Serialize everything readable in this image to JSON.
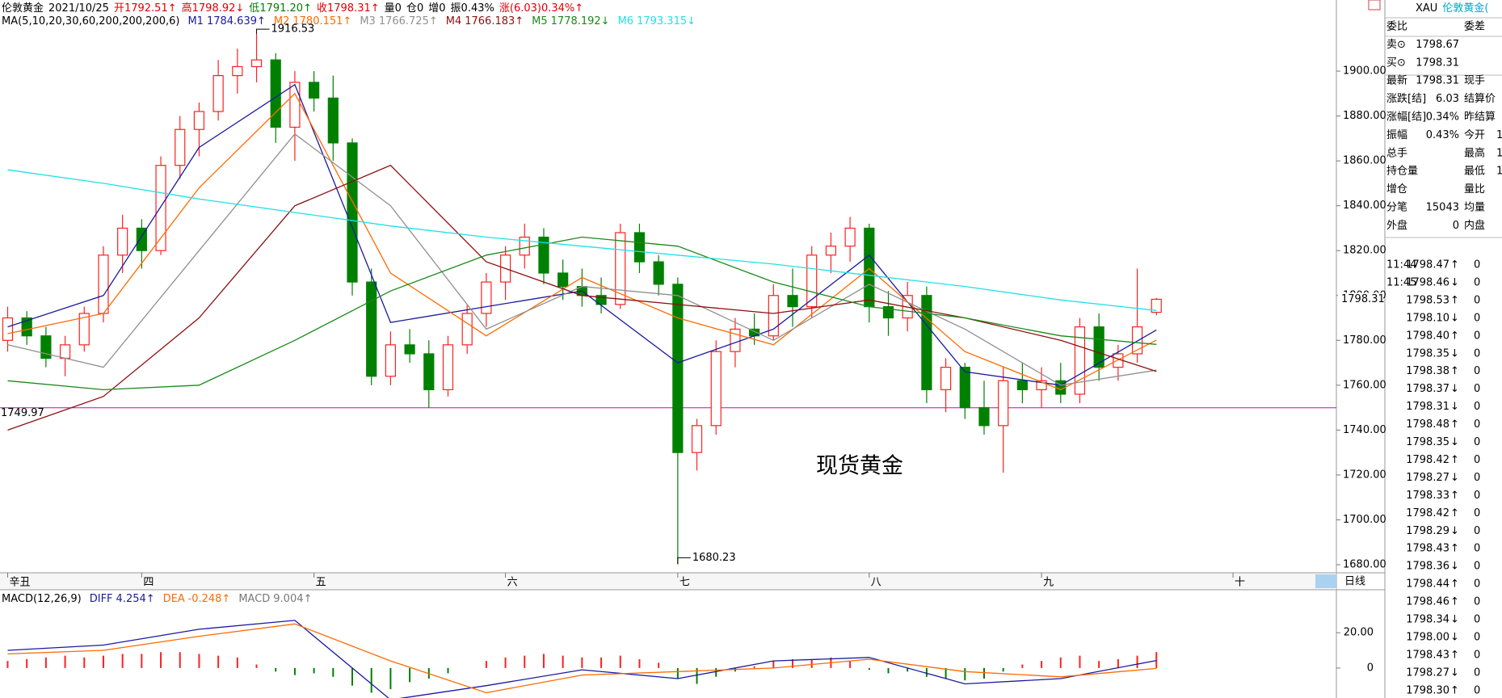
{
  "header": {
    "name": "伦敦黄金",
    "date": "2021/10/25",
    "fields": [
      {
        "label": "开",
        "value": "1792.51↑",
        "color": "#e00000"
      },
      {
        "label": "高",
        "value": "1798.92↓",
        "color": "#e00000"
      },
      {
        "label": "低",
        "value": "1791.20↑",
        "color": "#008000"
      },
      {
        "label": "收",
        "value": "1798.31↑",
        "color": "#e00000"
      },
      {
        "label": "量",
        "value": "0",
        "color": "#000000"
      },
      {
        "label": "仓",
        "value": "0",
        "color": "#000000"
      },
      {
        "label": "增",
        "value": "0",
        "color": "#000000"
      },
      {
        "label": "振",
        "value": "0.43%",
        "color": "#000000"
      },
      {
        "label": "涨",
        "value": "(6.03)0.34%↑",
        "color": "#e00000"
      }
    ]
  },
  "chart_data": [
    {
      "type": "candlestick",
      "title": "MA(5,10,20,30,60,200,200,200,6)",
      "up_color": "#ff2020",
      "down_color": "#008000",
      "open": [
        1780,
        1790,
        1782,
        1772,
        1778,
        1792,
        1818,
        1830,
        1820,
        1858,
        1874,
        1882,
        1898,
        1902,
        1905,
        1875,
        1895,
        1888,
        1868,
        1806,
        1764,
        1778,
        1774,
        1758,
        1778,
        1792,
        1806,
        1818,
        1826,
        1810,
        1804,
        1800,
        1796,
        1828,
        1815,
        1805,
        1730,
        1742,
        1775,
        1785,
        1782,
        1800,
        1795,
        1818,
        1822,
        1830,
        1795,
        1790,
        1800,
        1758,
        1768,
        1750,
        1742,
        1762,
        1758,
        1762,
        1756,
        1786,
        1768,
        1774,
        1792.51
      ],
      "high": [
        1795,
        1793,
        1786,
        1782,
        1795,
        1822,
        1836,
        1834,
        1862,
        1880,
        1886,
        1905,
        1910,
        1916.53,
        1908,
        1900,
        1900,
        1898,
        1870,
        1812,
        1784,
        1785,
        1780,
        1782,
        1796,
        1810,
        1822,
        1832,
        1830,
        1816,
        1812,
        1808,
        1832,
        1832,
        1818,
        1808,
        1745,
        1780,
        1790,
        1792,
        1805,
        1812,
        1822,
        1828,
        1835,
        1832,
        1802,
        1806,
        1804,
        1772,
        1770,
        1762,
        1768,
        1770,
        1768,
        1770,
        1790,
        1792,
        1778,
        1812,
        1798.92
      ],
      "low": [
        1775,
        1778,
        1768,
        1764,
        1775,
        1788,
        1810,
        1812,
        1818,
        1852,
        1862,
        1878,
        1890,
        1895,
        1868,
        1860,
        1882,
        1860,
        1800,
        1760,
        1760,
        1770,
        1750,
        1755,
        1774,
        1786,
        1798,
        1812,
        1805,
        1798,
        1795,
        1792,
        1794,
        1810,
        1800,
        1680.23,
        1722,
        1738,
        1768,
        1778,
        1780,
        1786,
        1790,
        1810,
        1815,
        1788,
        1782,
        1784,
        1752,
        1748,
        1745,
        1738,
        1721,
        1752,
        1750,
        1752,
        1752,
        1762,
        1762,
        1770,
        1791.2
      ],
      "close": [
        1790,
        1782,
        1772,
        1778,
        1792,
        1818,
        1830,
        1820,
        1858,
        1874,
        1882,
        1898,
        1902,
        1905,
        1875,
        1895,
        1888,
        1868,
        1806,
        1764,
        1778,
        1774,
        1758,
        1778,
        1792,
        1806,
        1818,
        1826,
        1810,
        1804,
        1800,
        1796,
        1828,
        1815,
        1805,
        1730,
        1742,
        1775,
        1785,
        1782,
        1800,
        1795,
        1818,
        1822,
        1830,
        1795,
        1790,
        1800,
        1758,
        1768,
        1750,
        1742,
        1762,
        1758,
        1762,
        1756,
        1786,
        1768,
        1774,
        1786,
        1798.31
      ],
      "series_x": [
        0,
        5,
        10,
        15,
        20,
        25,
        30,
        35,
        40,
        45,
        50,
        55,
        60
      ],
      "series": [
        {
          "name": "M1",
          "legend_value": "1784.639↑",
          "color": "#1a1aa0",
          "values": [
            1786,
            1800,
            1866,
            1894,
            1788,
            1795,
            1802,
            1770,
            1785,
            1818,
            1766,
            1760,
            1784.639
          ]
        },
        {
          "name": "M2",
          "legend_value": "1780.151↑",
          "color": "#ff6a00",
          "values": [
            1783,
            1792,
            1848,
            1890,
            1810,
            1782,
            1808,
            1790,
            1778,
            1812,
            1775,
            1758,
            1780.151
          ]
        },
        {
          "name": "M3",
          "legend_value": "1766.725↑",
          "color": "#909090",
          "values": [
            1778,
            1768,
            1820,
            1872,
            1840,
            1785,
            1804,
            1800,
            1780,
            1805,
            1785,
            1760,
            1766.725
          ]
        },
        {
          "name": "M4",
          "legend_value": "1766.183↑",
          "color": "#8b1010",
          "values": [
            1740,
            1755,
            1790,
            1840,
            1858,
            1815,
            1800,
            1796,
            1792,
            1798,
            1790,
            1780,
            1766.183
          ]
        },
        {
          "name": "M5",
          "legend_value": "1778.192↓",
          "color": "#1a8a1a",
          "values": [
            1762,
            1758,
            1760,
            1780,
            1802,
            1818,
            1826,
            1822,
            1806,
            1795,
            1790,
            1782,
            1778.192
          ]
        },
        {
          "name": "M6",
          "legend_value": "1793.315↓",
          "color": "#20e0e8",
          "values": [
            1856,
            1850,
            1843,
            1837,
            1831,
            1826,
            1822,
            1818,
            1814,
            1809,
            1804,
            1798,
            1793.315
          ]
        }
      ],
      "xlim": [
        -0.4,
        69.4
      ],
      "xticks": [
        {
          "value": 0,
          "label": "辛丑"
        },
        {
          "value": 7,
          "label": "四"
        },
        {
          "value": 16,
          "label": "五"
        },
        {
          "value": 26,
          "label": "六"
        },
        {
          "value": 35,
          "label": "七"
        },
        {
          "value": 45,
          "label": "八"
        },
        {
          "value": 54,
          "label": "九"
        },
        {
          "value": 64,
          "label": "十"
        }
      ],
      "ylim": [
        1676.4,
        1919.1
      ],
      "yticks": [
        {
          "value": 1680,
          "label": "1680.00"
        },
        {
          "value": 1700,
          "label": "1700.00"
        },
        {
          "value": 1720,
          "label": "1720.00"
        },
        {
          "value": 1740,
          "label": "1740.00"
        },
        {
          "value": 1760,
          "label": "1760.00"
        },
        {
          "value": 1780,
          "label": "1780.00"
        },
        {
          "value": 1800,
          "label": "1800.00"
        },
        {
          "value": 1820,
          "label": "1820.00"
        },
        {
          "value": 1840,
          "label": "1840.00"
        },
        {
          "value": 1860,
          "label": "1860.00"
        },
        {
          "value": 1880,
          "label": "1880.00"
        },
        {
          "value": 1900,
          "label": "1900.00"
        }
      ],
      "high_label": "1916.53",
      "low_label": "1680.23",
      "hline": {
        "value": 1749.97,
        "label": "1749.97",
        "color": "#cc00cc"
      },
      "last_price_label": "1798.31",
      "watermark": "现货黄金",
      "period_button": "日线"
    },
    {
      "type": "macd",
      "title": "MACD(12,26,9)",
      "series_x": [
        0,
        5,
        10,
        15,
        20,
        25,
        30,
        35,
        40,
        45,
        50,
        55,
        60
      ],
      "series": [
        {
          "name": "DIFF",
          "legend_value": "4.254↑",
          "color": "#1a1aa0",
          "values": [
            10,
            13,
            22,
            27,
            -18,
            -10,
            -1,
            -6,
            4,
            6,
            -9,
            -6,
            4.254
          ]
        },
        {
          "name": "DEA",
          "legend_value": "-0.248↑",
          "color": "#ff6a00",
          "values": [
            8,
            10,
            18,
            25,
            4,
            -14,
            -4,
            -2,
            0,
            5,
            -2,
            -5,
            -0.248
          ]
        }
      ],
      "histogram": {
        "name": "MACD",
        "legend_value": "9.004↑",
        "up_color": "#ff2020",
        "down_color": "#008000",
        "values": [
          4,
          5,
          6,
          7,
          6,
          7,
          8,
          8,
          9,
          9,
          8,
          7,
          6,
          2,
          -2,
          -4,
          -3,
          -5,
          -10,
          -14,
          -12,
          -8,
          -6,
          -3,
          0,
          4,
          6,
          7,
          8,
          7,
          6,
          6,
          7,
          5,
          3,
          -6,
          -9,
          -5,
          -2,
          1,
          4,
          5,
          5,
          6,
          4,
          -1,
          -3,
          -2,
          -5,
          -6,
          -7,
          -6,
          -2,
          2,
          4,
          6,
          7,
          4,
          5,
          7,
          9.004
        ]
      },
      "ylim": [
        -17,
        43
      ],
      "yticks": [
        0,
        {
          "value": 20,
          "label": "20.00"
        }
      ]
    }
  ],
  "quote": {
    "symbol": "XAU",
    "name": "伦敦黄金(",
    "rows": [
      {
        "left_label": "委比",
        "right_label": "委差"
      },
      {
        "left_label": "卖⊙",
        "left_value": "1798.67"
      },
      {
        "left_label": "买⊙",
        "left_value": "1798.31"
      },
      {
        "left_label": "最新",
        "left_value": "1798.31",
        "right_label": "现手"
      },
      {
        "left_label": "涨跌[结]",
        "left_value": "6.03",
        "right_label": "结算价"
      },
      {
        "left_label": "涨幅[结]",
        "left_value": "0.34%",
        "right_label": "昨结算"
      },
      {
        "left_label": "振幅",
        "left_value": "0.43%",
        "left_color": "#000000",
        "right_label": "今开",
        "right_value": "1"
      },
      {
        "left_label": "总手",
        "right_label": "最高",
        "right_value": "1"
      },
      {
        "left_label": "持仓量",
        "right_label": "最低",
        "right_value": "1",
        "right_color": "#008000"
      },
      {
        "left_label": "增仓",
        "right_label": "量比"
      },
      {
        "left_label": "分笔",
        "left_value": "15043",
        "left_color": "#000000",
        "right_label": "均量"
      },
      {
        "left_label": "外盘",
        "left_value": "0",
        "right_label": "内盘"
      }
    ],
    "ticks": [
      {
        "time": "11:44",
        "price": "1798.47",
        "dir": "↑",
        "dir_color": "#e00000",
        "volume": 0
      },
      {
        "time": "11:45",
        "price": "1798.46",
        "dir": "↓",
        "dir_color": "#008000",
        "volume": 0
      },
      {
        "price": "1798.53",
        "dir": "↑",
        "dir_color": "#e00000",
        "volume": 0
      },
      {
        "price": "1798.10",
        "dir": "↓",
        "dir_color": "#008000",
        "volume": 0
      },
      {
        "price": "1798.40",
        "dir": "↑",
        "dir_color": "#e00000",
        "volume": 0
      },
      {
        "price": "1798.35",
        "dir": "↓",
        "dir_color": "#008000",
        "volume": 0
      },
      {
        "price": "1798.38",
        "dir": "↑",
        "dir_color": "#e00000",
        "volume": 0
      },
      {
        "price": "1798.37",
        "dir": "↓",
        "dir_color": "#008000",
        "volume": 0
      },
      {
        "price": "1798.31",
        "dir": "↓",
        "dir_color": "#008000",
        "volume": 0
      },
      {
        "price": "1798.48",
        "dir": "↑",
        "dir_color": "#e00000",
        "volume": 0
      },
      {
        "price": "1798.35",
        "dir": "↓",
        "dir_color": "#008000",
        "volume": 0
      },
      {
        "price": "1798.42",
        "dir": "↑",
        "dir_color": "#e00000",
        "volume": 0
      },
      {
        "price": "1798.27",
        "dir": "↓",
        "dir_color": "#008000",
        "volume": 0
      },
      {
        "price": "1798.33",
        "dir": "↑",
        "dir_color": "#e00000",
        "volume": 0
      },
      {
        "price": "1798.42",
        "dir": "↑",
        "dir_color": "#e00000",
        "volume": 0
      },
      {
        "price": "1798.29",
        "dir": "↓",
        "dir_color": "#008000",
        "volume": 0
      },
      {
        "price": "1798.43",
        "dir": "↑",
        "dir_color": "#e00000",
        "volume": 0
      },
      {
        "price": "1798.36",
        "dir": "↓",
        "dir_color": "#008000",
        "volume": 0
      },
      {
        "price": "1798.44",
        "dir": "↑",
        "dir_color": "#e00000",
        "volume": 0
      },
      {
        "price": "1798.46",
        "dir": "↑",
        "dir_color": "#e00000",
        "volume": 0
      },
      {
        "price": "1798.34",
        "dir": "↓",
        "dir_color": "#008000",
        "volume": 0
      },
      {
        "price": "1798.00",
        "dir": "↓",
        "dir_color": "#008000",
        "volume": 0
      },
      {
        "price": "1798.43",
        "dir": "↑",
        "dir_color": "#e00000",
        "volume": 0
      },
      {
        "price": "1798.27",
        "dir": "↓",
        "dir_color": "#008000",
        "volume": 0
      },
      {
        "price": "1798.30",
        "dir": "↑",
        "dir_color": "#e00000",
        "volume": 0
      }
    ]
  }
}
